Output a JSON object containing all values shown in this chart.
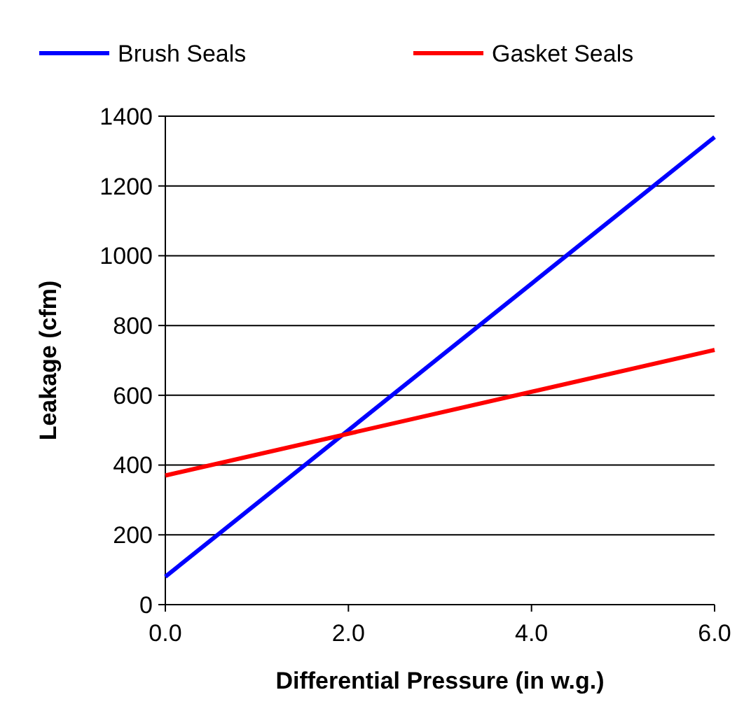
{
  "chart_data": {
    "type": "line",
    "xlabel": "Differential Pressure (in w.g.)",
    "ylabel": "Leakage (cfm)",
    "x": [
      0,
      6
    ],
    "series": [
      {
        "name": "Brush Seals",
        "color": "#0000ff",
        "values": [
          80,
          1340
        ]
      },
      {
        "name": "Gasket Seals",
        "color": "#ff0000",
        "values": [
          370,
          730
        ]
      }
    ],
    "xlim": [
      0,
      6
    ],
    "xticks": [
      {
        "value": 0,
        "label": "0.0"
      },
      {
        "value": 2,
        "label": "2.0"
      },
      {
        "value": 4,
        "label": "4.0"
      },
      {
        "value": 6,
        "label": "6.0"
      }
    ],
    "ylim": [
      0,
      1400
    ],
    "yticks": [
      0,
      200,
      400,
      600,
      800,
      1000,
      1200,
      1400
    ],
    "grid": "y",
    "legend": "top",
    "marker": "none",
    "line_style": "solid"
  }
}
